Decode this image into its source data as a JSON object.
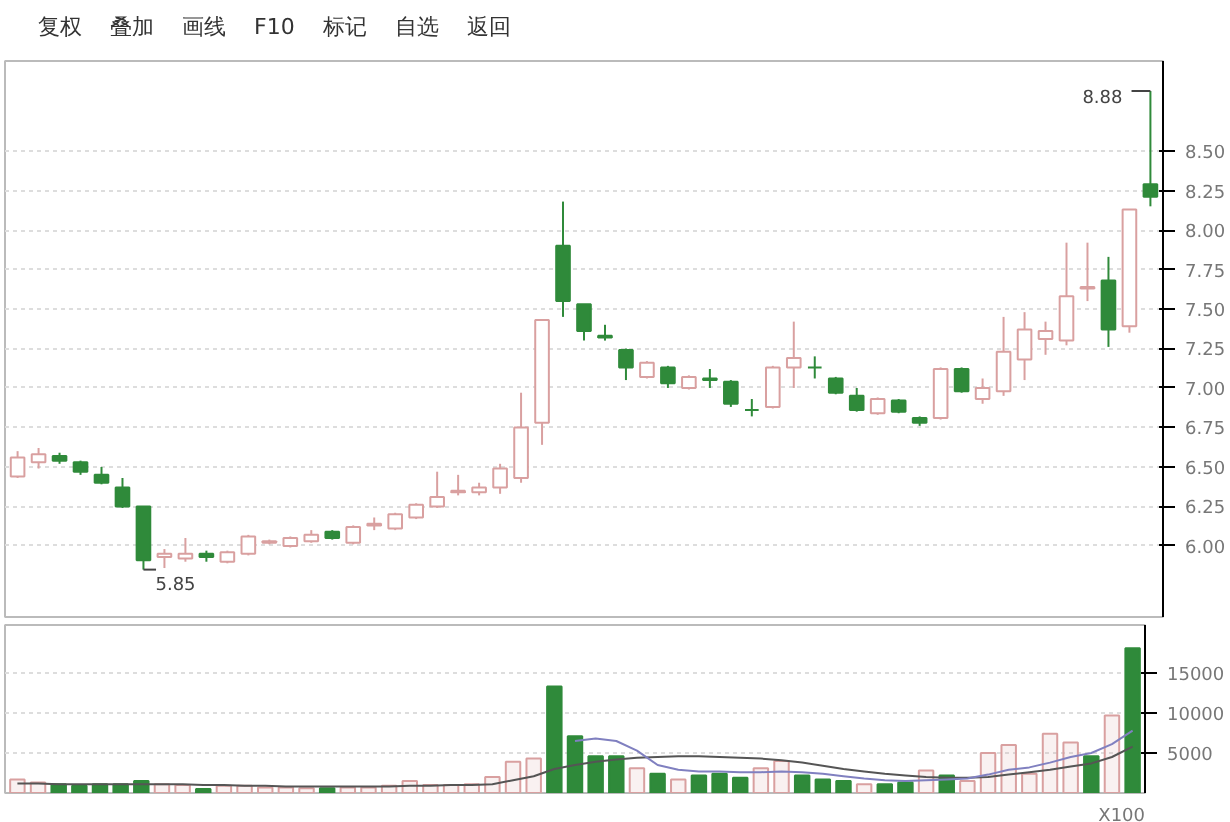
{
  "chart_data": [
    {
      "type": "candlestick",
      "categories": [
        null,
        null,
        null,
        null,
        null,
        null,
        null,
        null,
        null,
        null,
        null,
        null,
        null,
        null,
        null,
        null,
        null,
        null,
        null,
        null,
        null,
        null,
        null,
        null,
        null,
        null,
        null,
        null,
        null,
        null,
        null,
        null,
        null,
        null,
        null,
        null,
        null,
        null,
        null,
        null,
        null,
        null,
        null,
        null,
        null,
        null,
        null,
        null,
        null,
        null,
        null,
        null,
        null,
        null,
        null
      ],
      "ohlc": [
        [
          6.44,
          6.6,
          6.43,
          6.56
        ],
        [
          6.53,
          6.62,
          6.49,
          6.58
        ],
        [
          6.57,
          6.59,
          6.52,
          6.54
        ],
        [
          6.53,
          6.54,
          6.45,
          6.47
        ],
        [
          6.45,
          6.5,
          6.39,
          6.4
        ],
        [
          6.37,
          6.43,
          6.24,
          6.25
        ],
        [
          6.25,
          6.25,
          5.85,
          5.91
        ],
        [
          5.93,
          5.98,
          5.86,
          5.95
        ],
        [
          5.92,
          6.05,
          5.9,
          5.95
        ],
        [
          5.95,
          5.97,
          5.9,
          5.93
        ],
        [
          5.9,
          5.97,
          5.89,
          5.96
        ],
        [
          5.95,
          6.07,
          5.94,
          6.06
        ],
        [
          6.02,
          6.04,
          6.01,
          6.03
        ],
        [
          6.0,
          6.06,
          5.99,
          6.05
        ],
        [
          6.03,
          6.1,
          6.02,
          6.07
        ],
        [
          6.09,
          6.1,
          6.04,
          6.05
        ],
        [
          6.02,
          6.13,
          6.01,
          6.12
        ],
        [
          6.13,
          6.18,
          6.1,
          6.14
        ],
        [
          6.11,
          6.21,
          6.1,
          6.2
        ],
        [
          6.18,
          6.27,
          6.17,
          6.26
        ],
        [
          6.25,
          6.47,
          6.24,
          6.31
        ],
        [
          6.34,
          6.45,
          6.32,
          6.35
        ],
        [
          6.34,
          6.4,
          6.32,
          6.37
        ],
        [
          6.37,
          6.52,
          6.33,
          6.49
        ],
        [
          6.43,
          6.97,
          6.4,
          6.75
        ],
        [
          6.78,
          7.43,
          6.64,
          7.43
        ],
        [
          7.9,
          8.18,
          7.45,
          7.55
        ],
        [
          7.53,
          7.53,
          7.3,
          7.36
        ],
        [
          7.33,
          7.4,
          7.3,
          7.32
        ],
        [
          7.24,
          7.25,
          7.05,
          7.13
        ],
        [
          7.07,
          7.17,
          7.06,
          7.16
        ],
        [
          7.13,
          7.14,
          7.0,
          7.03
        ],
        [
          7.0,
          7.08,
          6.99,
          7.07
        ],
        [
          7.06,
          7.12,
          7.0,
          7.05
        ],
        [
          7.04,
          7.05,
          6.88,
          6.9
        ],
        [
          6.86,
          6.93,
          6.82,
          6.86
        ],
        [
          6.88,
          7.14,
          6.87,
          7.13
        ],
        [
          7.13,
          7.42,
          7.0,
          7.19
        ],
        [
          7.13,
          7.2,
          7.06,
          7.13
        ],
        [
          7.06,
          7.07,
          6.96,
          6.97
        ],
        [
          6.95,
          7.0,
          6.85,
          6.86
        ],
        [
          6.84,
          6.94,
          6.83,
          6.93
        ],
        [
          6.92,
          6.93,
          6.84,
          6.85
        ],
        [
          6.81,
          6.82,
          6.76,
          6.78
        ],
        [
          6.81,
          7.13,
          6.8,
          7.12
        ],
        [
          7.12,
          7.13,
          6.97,
          6.98
        ],
        [
          6.93,
          7.06,
          6.9,
          7.0
        ],
        [
          6.98,
          7.45,
          6.95,
          7.23
        ],
        [
          7.18,
          7.48,
          7.05,
          7.37
        ],
        [
          7.31,
          7.42,
          7.21,
          7.36
        ],
        [
          7.3,
          7.92,
          7.27,
          7.58
        ],
        [
          7.63,
          7.92,
          7.55,
          7.64
        ],
        [
          7.68,
          7.83,
          7.26,
          7.37
        ],
        [
          7.39,
          8.13,
          7.35,
          8.13
        ],
        [
          8.29,
          8.88,
          8.15,
          8.21
        ]
      ],
      "colors": [
        "#d9a0a0",
        "#d9a0a0",
        "#2f8a3a",
        "#2f8a3a",
        "#2f8a3a",
        "#2f8a3a",
        "#2f8a3a",
        "#d9a0a0",
        "#d9a0a0",
        "#2f8a3a",
        "#d9a0a0",
        "#d9a0a0",
        "#d9a0a0",
        "#d9a0a0",
        "#d9a0a0",
        "#2f8a3a",
        "#d9a0a0",
        "#d9a0a0",
        "#d9a0a0",
        "#d9a0a0",
        "#d9a0a0",
        "#d9a0a0",
        "#d9a0a0",
        "#d9a0a0",
        "#d9a0a0",
        "#d9a0a0",
        "#2f8a3a",
        "#2f8a3a",
        "#2f8a3a",
        "#2f8a3a",
        "#d9a0a0",
        "#2f8a3a",
        "#d9a0a0",
        "#2f8a3a",
        "#2f8a3a",
        "#2f8a3a",
        "#d9a0a0",
        "#d9a0a0",
        "#2f8a3a",
        "#2f8a3a",
        "#2f8a3a",
        "#d9a0a0",
        "#2f8a3a",
        "#2f8a3a",
        "#d9a0a0",
        "#2f8a3a",
        "#d9a0a0",
        "#d9a0a0",
        "#d9a0a0",
        "#d9a0a0",
        "#d9a0a0",
        "#d9a0a0",
        "#2f8a3a",
        "#d9a0a0",
        "#2f8a3a"
      ],
      "ylim": [
        5.55,
        9.07
      ],
      "yticks": [
        {
          "value": 6,
          "label": "6.00"
        },
        {
          "value": 6.25,
          "label": "6.25"
        },
        {
          "value": 6.5,
          "label": "6.50"
        },
        {
          "value": 6.75,
          "label": "6.75"
        },
        {
          "value": 7,
          "label": "7.00"
        },
        {
          "value": 7.25,
          "label": "7.25"
        },
        {
          "value": 7.5,
          "label": "7.50"
        },
        {
          "value": 7.75,
          "label": "7.75"
        },
        {
          "value": 8,
          "label": "8.00"
        },
        {
          "value": 8.25,
          "label": "8.25"
        },
        {
          "value": 8.5,
          "label": "8.50"
        }
      ],
      "grid": "y",
      "annotations": [
        "5.85",
        "8.88",
        "复权",
        "叠加",
        "画线",
        "F10",
        "标记",
        "自选",
        "返回"
      ]
    },
    {
      "type": "bar",
      "categories": [
        null,
        null,
        null,
        null,
        null,
        null,
        null,
        null,
        null,
        null,
        null,
        null,
        null,
        null,
        null,
        null,
        null,
        null,
        null,
        null,
        null,
        null,
        null,
        null,
        null,
        null,
        null,
        null,
        null,
        null,
        null,
        null,
        null,
        null,
        null,
        null,
        null,
        null,
        null,
        null,
        null,
        null,
        null,
        null,
        null,
        null,
        null,
        null,
        null,
        null,
        null,
        null,
        null,
        null,
        null
      ],
      "series": [
        {
          "type": "bar",
          "values": [
            1700,
            1300,
            1100,
            900,
            1100,
            1100,
            1500,
            1100,
            1000,
            500,
            900,
            900,
            700,
            700,
            600,
            600,
            700,
            700,
            900,
            1500,
            1000,
            1000,
            1100,
            2000,
            3900,
            4300,
            13300,
            7100,
            4600,
            4600,
            3100,
            2400,
            1700,
            2200,
            2400,
            1900,
            3100,
            4000,
            2200,
            1700,
            1500,
            1100,
            1100,
            1300,
            2800,
            2200,
            1500,
            5000,
            6000,
            2400,
            7400,
            6300,
            4600,
            9700,
            18100
          ],
          "colors": [
            "#d9a0a0",
            "#d9a0a0",
            "#2f8a3a",
            "#2f8a3a",
            "#2f8a3a",
            "#2f8a3a",
            "#2f8a3a",
            "#d9a0a0",
            "#d9a0a0",
            "#2f8a3a",
            "#d9a0a0",
            "#d9a0a0",
            "#d9a0a0",
            "#d9a0a0",
            "#d9a0a0",
            "#2f8a3a",
            "#d9a0a0",
            "#d9a0a0",
            "#d9a0a0",
            "#d9a0a0",
            "#d9a0a0",
            "#d9a0a0",
            "#d9a0a0",
            "#d9a0a0",
            "#d9a0a0",
            "#d9a0a0",
            "#2f8a3a",
            "#2f8a3a",
            "#2f8a3a",
            "#2f8a3a",
            "#d9a0a0",
            "#2f8a3a",
            "#d9a0a0",
            "#2f8a3a",
            "#2f8a3a",
            "#2f8a3a",
            "#d9a0a0",
            "#d9a0a0",
            "#2f8a3a",
            "#2f8a3a",
            "#2f8a3a",
            "#d9a0a0",
            "#2f8a3a",
            "#2f8a3a",
            "#d9a0a0",
            "#2f8a3a",
            "#d9a0a0",
            "#d9a0a0",
            "#d9a0a0",
            "#d9a0a0",
            "#d9a0a0",
            "#d9a0a0",
            "#2f8a3a",
            "#d9a0a0",
            "#2f8a3a"
          ]
        },
        {
          "type": "line",
          "color": "#555555",
          "values": [
            1200,
            1200,
            1100,
            1100,
            1100,
            1100,
            1100,
            1100,
            1100,
            1000,
            1000,
            900,
            900,
            800,
            800,
            800,
            800,
            800,
            800,
            900,
            900,
            1000,
            1000,
            1100,
            1600,
            2100,
            3000,
            3500,
            3900,
            4200,
            4400,
            4500,
            4600,
            4600,
            4500,
            4400,
            4300,
            4100,
            3800,
            3400,
            3000,
            2700,
            2400,
            2200,
            2000,
            1900,
            1900,
            2000,
            2300,
            2600,
            2900,
            3300,
            3700,
            4500,
            5800
          ]
        },
        {
          "type": "line",
          "color": "#8080c0",
          "values": [
            null,
            null,
            null,
            null,
            null,
            null,
            null,
            null,
            null,
            null,
            null,
            null,
            null,
            null,
            null,
            null,
            null,
            null,
            null,
            null,
            null,
            null,
            null,
            null,
            null,
            null,
            null,
            6500,
            6800,
            6500,
            5300,
            3500,
            2900,
            2700,
            2700,
            2600,
            2600,
            2700,
            2600,
            2400,
            2100,
            1800,
            1600,
            1500,
            1600,
            1700,
            1800,
            2300,
            2900,
            3200,
            3800,
            4500,
            5000,
            6100,
            7800
          ]
        }
      ],
      "ylim": [
        0,
        21000
      ],
      "yticks": [
        5000,
        10000,
        15000
      ],
      "grid": "y",
      "annotations": [
        "X100"
      ]
    }
  ]
}
